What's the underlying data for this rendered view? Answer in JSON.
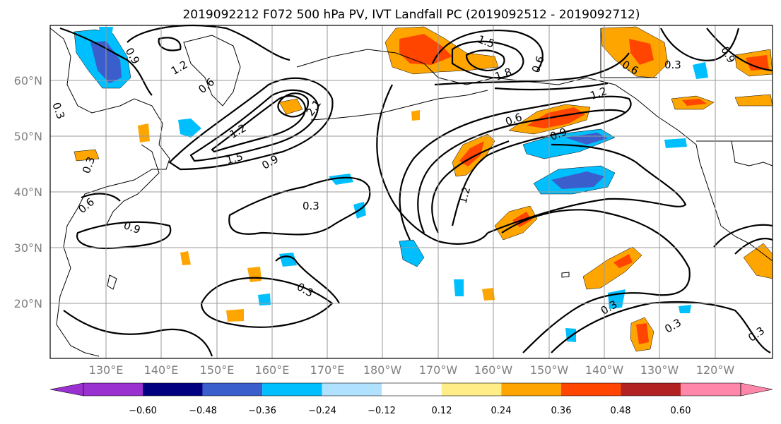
{
  "title": "2019092212 F072 500 hPa PV, IVT Landfall PC (2019092512 - 2019092712)",
  "lat_labels": [
    "20°N",
    "30°N",
    "40°N",
    "50°N",
    "60°N"
  ],
  "lon_labels": [
    "130°E",
    "140°E",
    "150°E",
    "160°E",
    "170°E",
    "180°W",
    "170°W",
    "160°W",
    "150°W",
    "140°W",
    "130°W",
    "120°W"
  ],
  "contour_labels": [
    "1.2",
    "0.9",
    "0.6",
    "0.3",
    "1.5",
    "1.8",
    "2.1"
  ],
  "colorbar": {
    "ticks": [
      "−0.60",
      "−0.48",
      "−0.36",
      "−0.24",
      "−0.12",
      "0.12",
      "0.24",
      "0.36",
      "0.48",
      "0.60"
    ],
    "colors": [
      "#9b30d0",
      "#000080",
      "#3a5fcd",
      "#00bfff",
      "#b0e2ff",
      "#ffffff",
      "#ffee88",
      "#ffa500",
      "#ff4500",
      "#b22222",
      "#ff88aa"
    ]
  }
}
